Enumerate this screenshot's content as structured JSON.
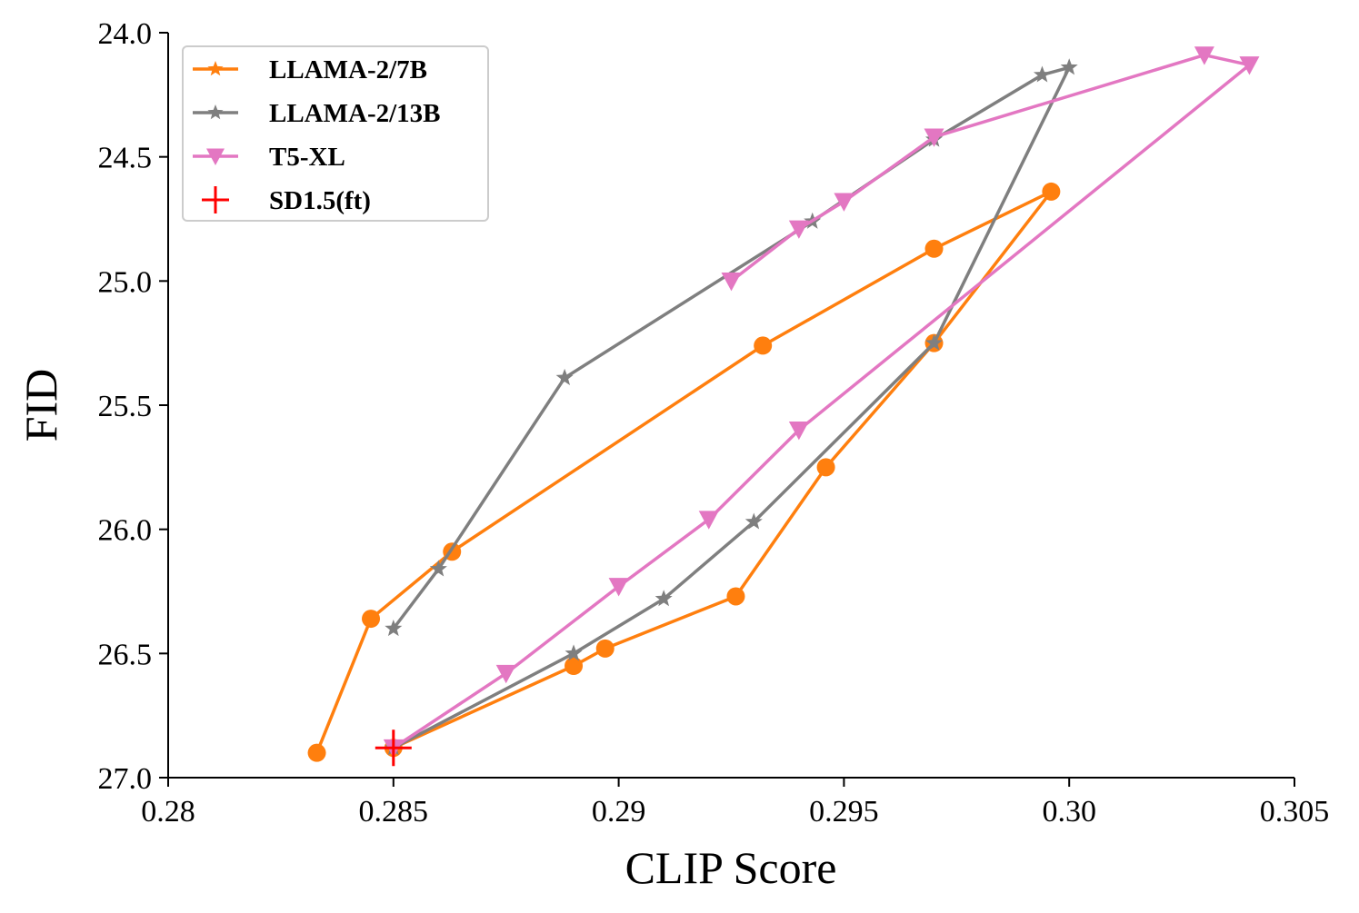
{
  "chart_data": {
    "type": "line",
    "title": "",
    "xlabel": "CLIP Score",
    "ylabel": "FID",
    "xlim": [
      0.28,
      0.305
    ],
    "ylim": [
      27.0,
      24.0
    ],
    "y_inverted": true,
    "grid": false,
    "legend_position": "top-left",
    "x_ticks": [
      {
        "value": 0.28,
        "label": "0.28"
      },
      {
        "value": 0.285,
        "label": "0.285"
      },
      {
        "value": 0.29,
        "label": "0.29"
      },
      {
        "value": 0.295,
        "label": "0.295"
      },
      {
        "value": 0.3,
        "label": "0.30"
      },
      {
        "value": 0.305,
        "label": "0.305"
      }
    ],
    "y_ticks": [
      {
        "value": 24.0,
        "label": "24.0"
      },
      {
        "value": 24.5,
        "label": "24.5"
      },
      {
        "value": 25.0,
        "label": "25.0"
      },
      {
        "value": 25.5,
        "label": "25.5"
      },
      {
        "value": 26.0,
        "label": "26.0"
      },
      {
        "value": 26.5,
        "label": "26.5"
      },
      {
        "value": 27.0,
        "label": "27.0"
      }
    ],
    "series": [
      {
        "name": "LLAMA-2/7B",
        "color": "#ff7f0e",
        "marker": "circle",
        "legend_marker": "star",
        "x": [
          0.2833,
          0.2845,
          0.2863,
          0.2932,
          0.297,
          0.2996,
          0.297,
          0.2946,
          0.2926,
          0.2897,
          0.289,
          0.285
        ],
        "y": [
          26.9,
          26.36,
          26.09,
          25.26,
          24.87,
          24.64,
          25.25,
          25.75,
          26.27,
          26.48,
          26.55,
          26.88
        ]
      },
      {
        "name": "LLAMA-2/13B",
        "color": "#7f7f7f",
        "marker": "star",
        "legend_marker": "star",
        "x": [
          0.285,
          0.286,
          0.2888,
          0.2943,
          0.297,
          0.2994,
          0.3,
          0.297,
          0.293,
          0.291,
          0.289,
          0.285
        ],
        "y": [
          26.4,
          26.16,
          25.39,
          24.76,
          24.43,
          24.17,
          24.14,
          25.25,
          25.97,
          26.28,
          26.5,
          26.88
        ]
      },
      {
        "name": "T5-XL",
        "color": "#e377c2",
        "marker": "triangle-down",
        "legend_marker": "triangle-down",
        "x": [
          0.2925,
          0.294,
          0.295,
          0.297,
          0.303,
          0.304,
          0.294,
          0.292,
          0.29,
          0.2875,
          0.285
        ],
        "y": [
          25.0,
          24.79,
          24.68,
          24.42,
          24.09,
          24.13,
          25.6,
          25.96,
          26.23,
          26.58,
          26.88
        ]
      },
      {
        "name": "SD1.5(ft)",
        "color": "#ff0000",
        "marker": "plus",
        "legend_marker": "plus",
        "x": [
          0.285
        ],
        "y": [
          26.88
        ]
      }
    ]
  }
}
